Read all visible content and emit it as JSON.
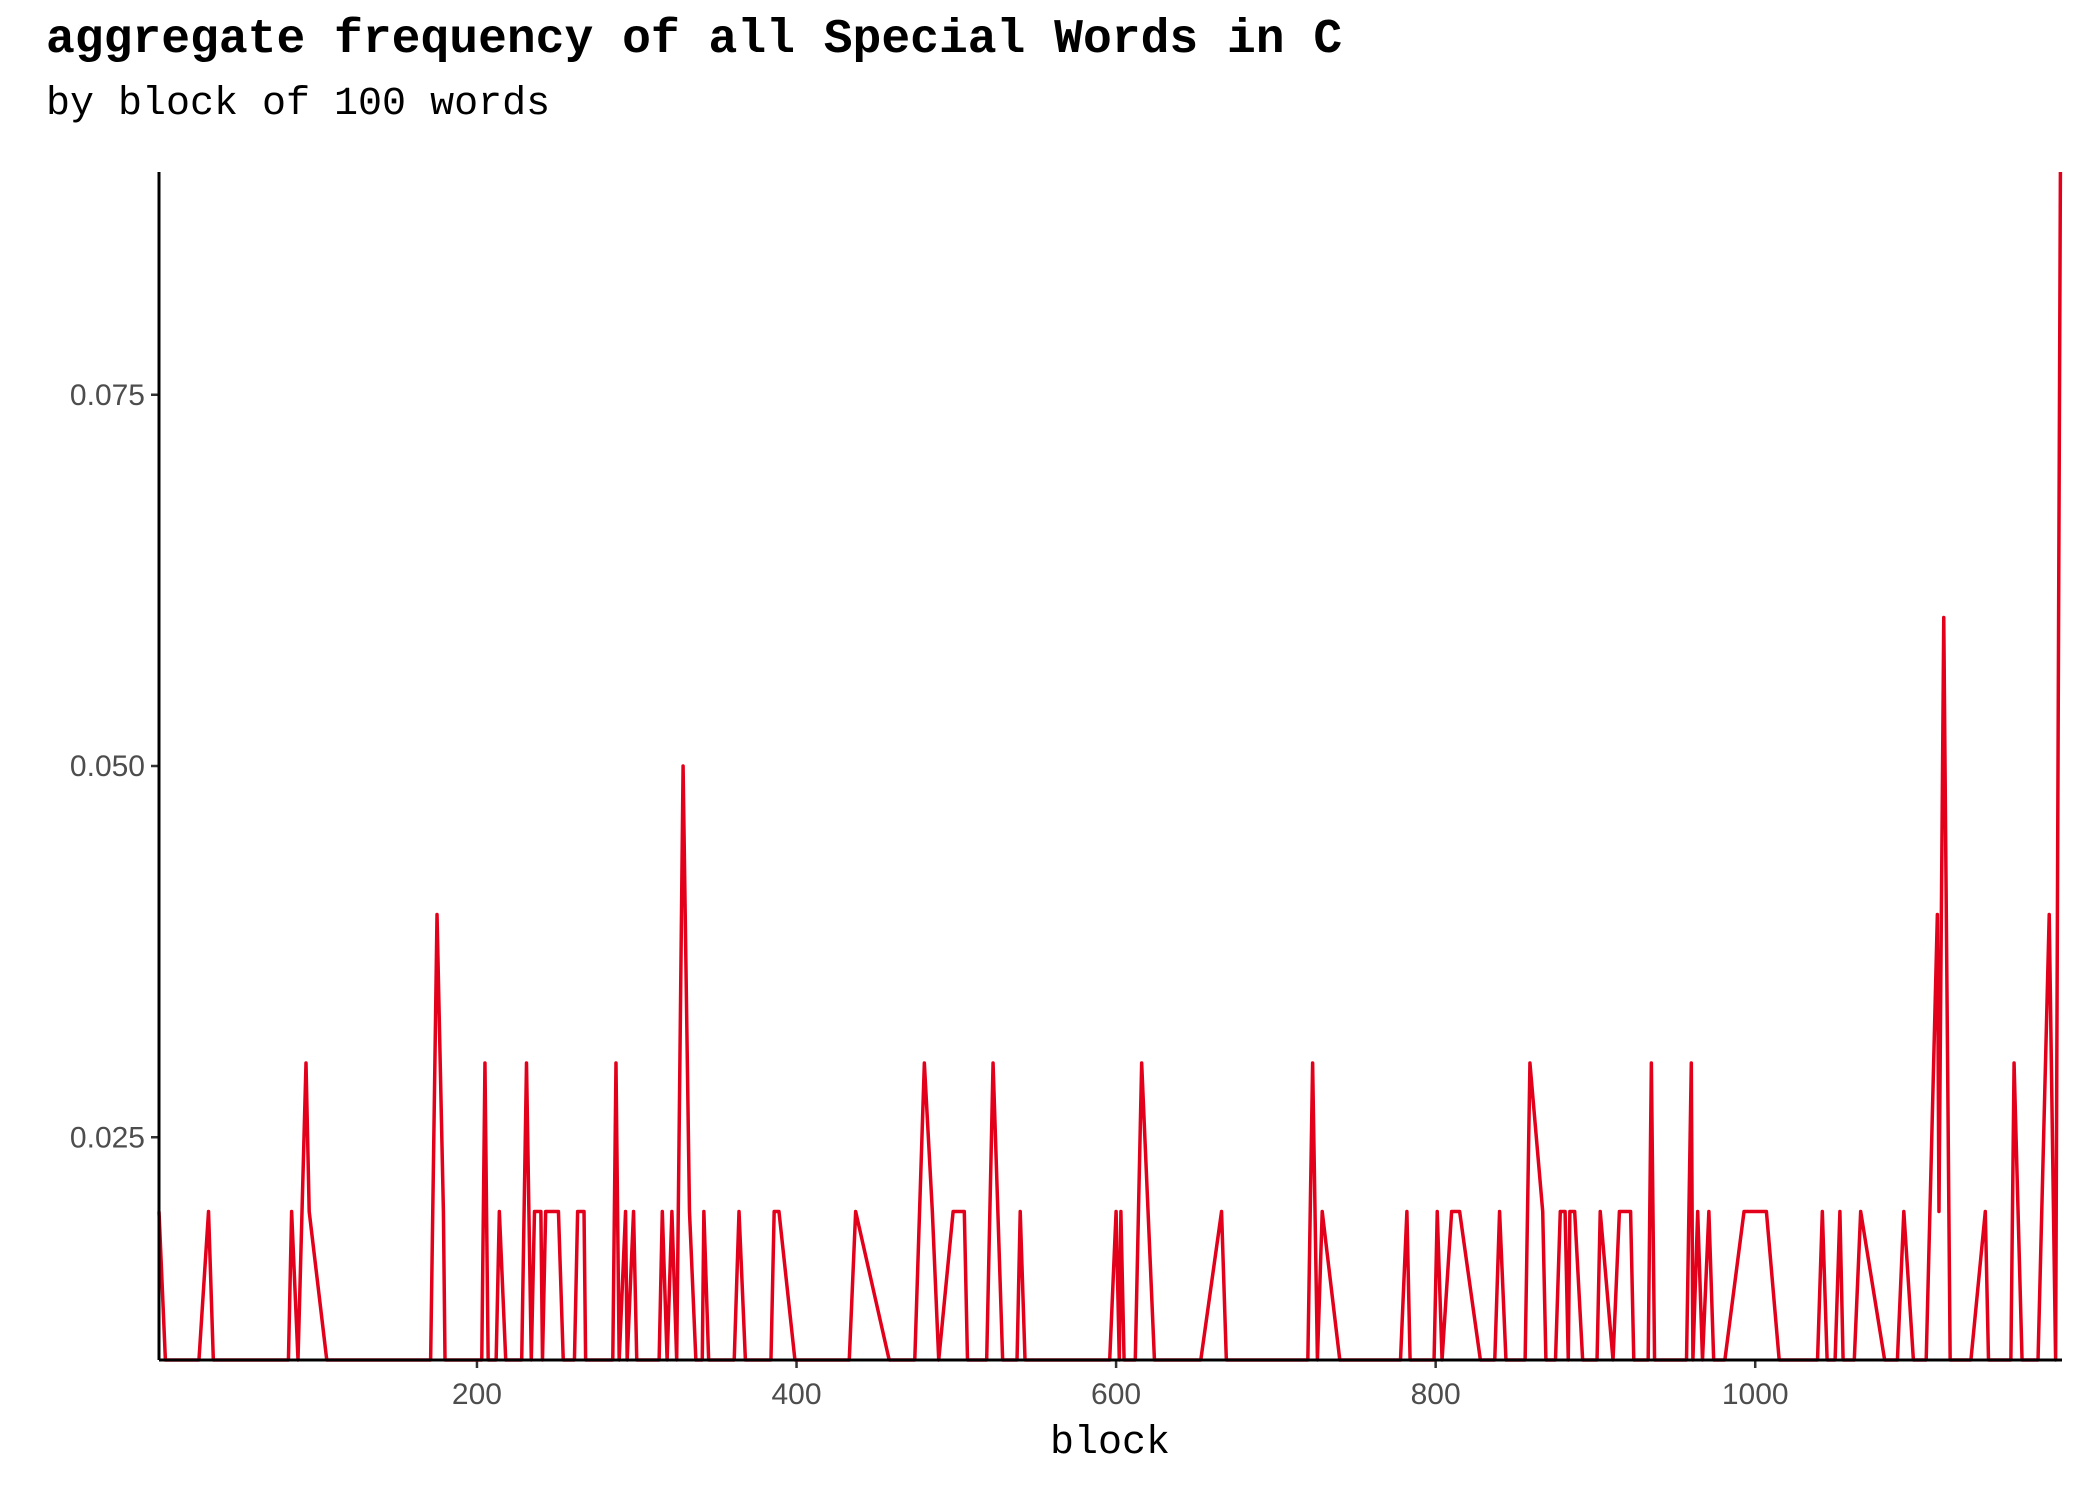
{
  "chart_data": {
    "type": "line",
    "title": "aggregate frequency of all Special Words in C",
    "subtitle": "by block of 100 words",
    "x_label": "block",
    "xlim": [
      1,
      1192
    ],
    "ylim": [
      0.01,
      0.09
    ],
    "xticks": [
      200,
      400,
      600,
      800,
      1000
    ],
    "yticks": [
      0.025,
      {
        "value": 0.05,
        "label": "0.050"
      },
      0.075
    ],
    "grid": false,
    "series": [
      {
        "color": "#e3001b",
        "x": [
          1,
          5,
          26,
          32,
          35,
          82,
          84,
          88,
          93,
          95,
          106,
          171,
          175,
          179,
          180,
          203,
          205,
          207,
          212,
          214,
          218,
          228,
          231,
          234,
          236,
          240,
          241,
          243,
          251,
          254,
          261,
          263,
          267,
          268,
          285,
          287,
          289,
          293,
          294,
          298,
          300,
          314,
          316,
          319,
          322,
          325,
          329,
          333,
          337,
          341,
          342,
          345,
          361,
          364,
          368,
          384,
          386,
          389,
          399,
          433,
          437,
          458,
          474,
          480,
          485,
          489,
          498,
          505,
          507,
          519,
          523,
          529,
          538,
          540,
          543,
          596,
          600,
          602,
          603,
          605,
          612,
          616,
          624,
          653,
          666,
          669,
          720,
          723,
          726,
          729,
          740,
          778,
          782,
          784,
          799,
          801,
          804,
          810,
          815,
          828,
          837,
          840,
          844,
          856,
          859,
          867,
          869,
          875,
          878,
          881,
          883,
          884,
          887,
          892,
          901,
          903,
          911,
          915,
          922,
          924,
          933,
          935,
          937,
          957,
          960,
          961,
          964,
          967,
          971,
          974,
          981,
          993,
          1007,
          1015,
          1039,
          1042,
          1045,
          1050,
          1053,
          1055,
          1062,
          1066,
          1081,
          1089,
          1093,
          1099,
          1107,
          1114,
          1115,
          1118,
          1122,
          1135,
          1144,
          1146,
          1160,
          1162,
          1167,
          1177,
          1184,
          1188,
          1191
        ],
        "values": [
          0.02,
          0.01,
          0.01,
          0.02,
          0.01,
          0.01,
          0.02,
          0.01,
          0.03,
          0.02,
          0.01,
          0.01,
          0.04,
          0.02,
          0.01,
          0.01,
          0.03,
          0.01,
          0.01,
          0.02,
          0.01,
          0.01,
          0.03,
          0.01,
          0.02,
          0.02,
          0.01,
          0.02,
          0.02,
          0.01,
          0.01,
          0.02,
          0.02,
          0.01,
          0.01,
          0.03,
          0.01,
          0.02,
          0.01,
          0.02,
          0.01,
          0.01,
          0.02,
          0.01,
          0.02,
          0.01,
          0.05,
          0.02,
          0.01,
          0.01,
          0.02,
          0.01,
          0.01,
          0.02,
          0.01,
          0.01,
          0.02,
          0.02,
          0.01,
          0.01,
          0.02,
          0.01,
          0.01,
          0.03,
          0.02,
          0.01,
          0.02,
          0.02,
          0.01,
          0.01,
          0.03,
          0.01,
          0.01,
          0.02,
          0.01,
          0.01,
          0.02,
          0.01,
          0.02,
          0.01,
          0.01,
          0.03,
          0.01,
          0.01,
          0.02,
          0.01,
          0.01,
          0.03,
          0.01,
          0.02,
          0.01,
          0.01,
          0.02,
          0.01,
          0.01,
          0.02,
          0.01,
          0.02,
          0.02,
          0.01,
          0.01,
          0.02,
          0.01,
          0.01,
          0.03,
          0.02,
          0.01,
          0.01,
          0.02,
          0.02,
          0.01,
          0.02,
          0.02,
          0.01,
          0.01,
          0.02,
          0.01,
          0.02,
          0.02,
          0.01,
          0.01,
          0.03,
          0.01,
          0.01,
          0.03,
          0.01,
          0.02,
          0.01,
          0.02,
          0.01,
          0.01,
          0.02,
          0.02,
          0.01,
          0.01,
          0.02,
          0.01,
          0.01,
          0.02,
          0.01,
          0.01,
          0.02,
          0.01,
          0.01,
          0.02,
          0.01,
          0.01,
          0.04,
          0.02,
          0.06,
          0.01,
          0.01,
          0.02,
          0.01,
          0.01,
          0.03,
          0.01,
          0.01,
          0.04,
          0.01,
          0.09
        ]
      }
    ]
  }
}
